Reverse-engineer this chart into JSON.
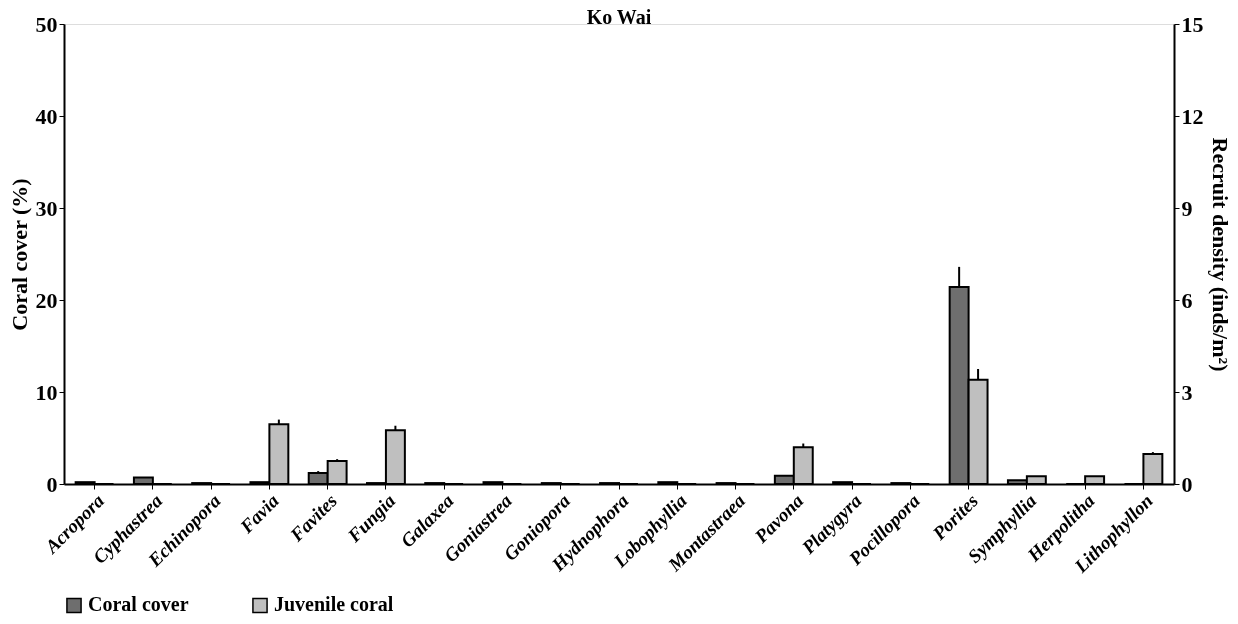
{
  "chart_data": {
    "type": "bar",
    "title": "Ko Wai",
    "ylabel": "Coral cover (%)",
    "y2label": "Recruit density (inds/m²)",
    "categories": [
      "Acropora",
      "Cyphastrea",
      "Echinopora",
      "Favia",
      "Favites",
      "Fungia",
      "Galaxea",
      "Goniastrea",
      "Goniopora",
      "Hydnophora",
      "Lobophyllia",
      "Montastraea",
      "Pavona",
      "Platygyra",
      "Pocillopora",
      "Porites",
      "Symphyllia",
      "Herpolitha",
      "Lithophyllon"
    ],
    "series": [
      {
        "name": "Coral cover",
        "color": "#6e6e6e",
        "values": [
          0.2,
          0.7,
          0.1,
          0.2,
          1.2,
          0.1,
          0.1,
          0.2,
          0.1,
          0.1,
          0.2,
          0.1,
          0.9,
          0.2,
          0.1,
          21.4,
          0.4,
          0,
          0
        ],
        "errors": [
          null,
          null,
          null,
          null,
          0.2,
          null,
          null,
          null,
          null,
          null,
          null,
          null,
          null,
          null,
          null,
          2.2,
          null,
          null,
          null
        ]
      },
      {
        "name": "Juvenile coral",
        "color": "#bfbfbf",
        "axis": "y2",
        "values": [
          0,
          0,
          0,
          1.95,
          0.75,
          1.75,
          0,
          0,
          0,
          0,
          0,
          0,
          1.2,
          0,
          0,
          3.4,
          0.25,
          0.25,
          0.98
        ],
        "errors": [
          null,
          null,
          null,
          0.15,
          0.06,
          0.15,
          null,
          null,
          null,
          null,
          null,
          null,
          0.12,
          null,
          null,
          0.35,
          null,
          null,
          0.06
        ]
      }
    ],
    "ylim": [
      0,
      50
    ],
    "yticks": [
      0,
      10,
      20,
      30,
      40,
      50
    ],
    "y2lim": [
      0,
      15
    ],
    "y2ticks": [
      0,
      3,
      6,
      9,
      12,
      15
    ],
    "legend": "bottom"
  }
}
